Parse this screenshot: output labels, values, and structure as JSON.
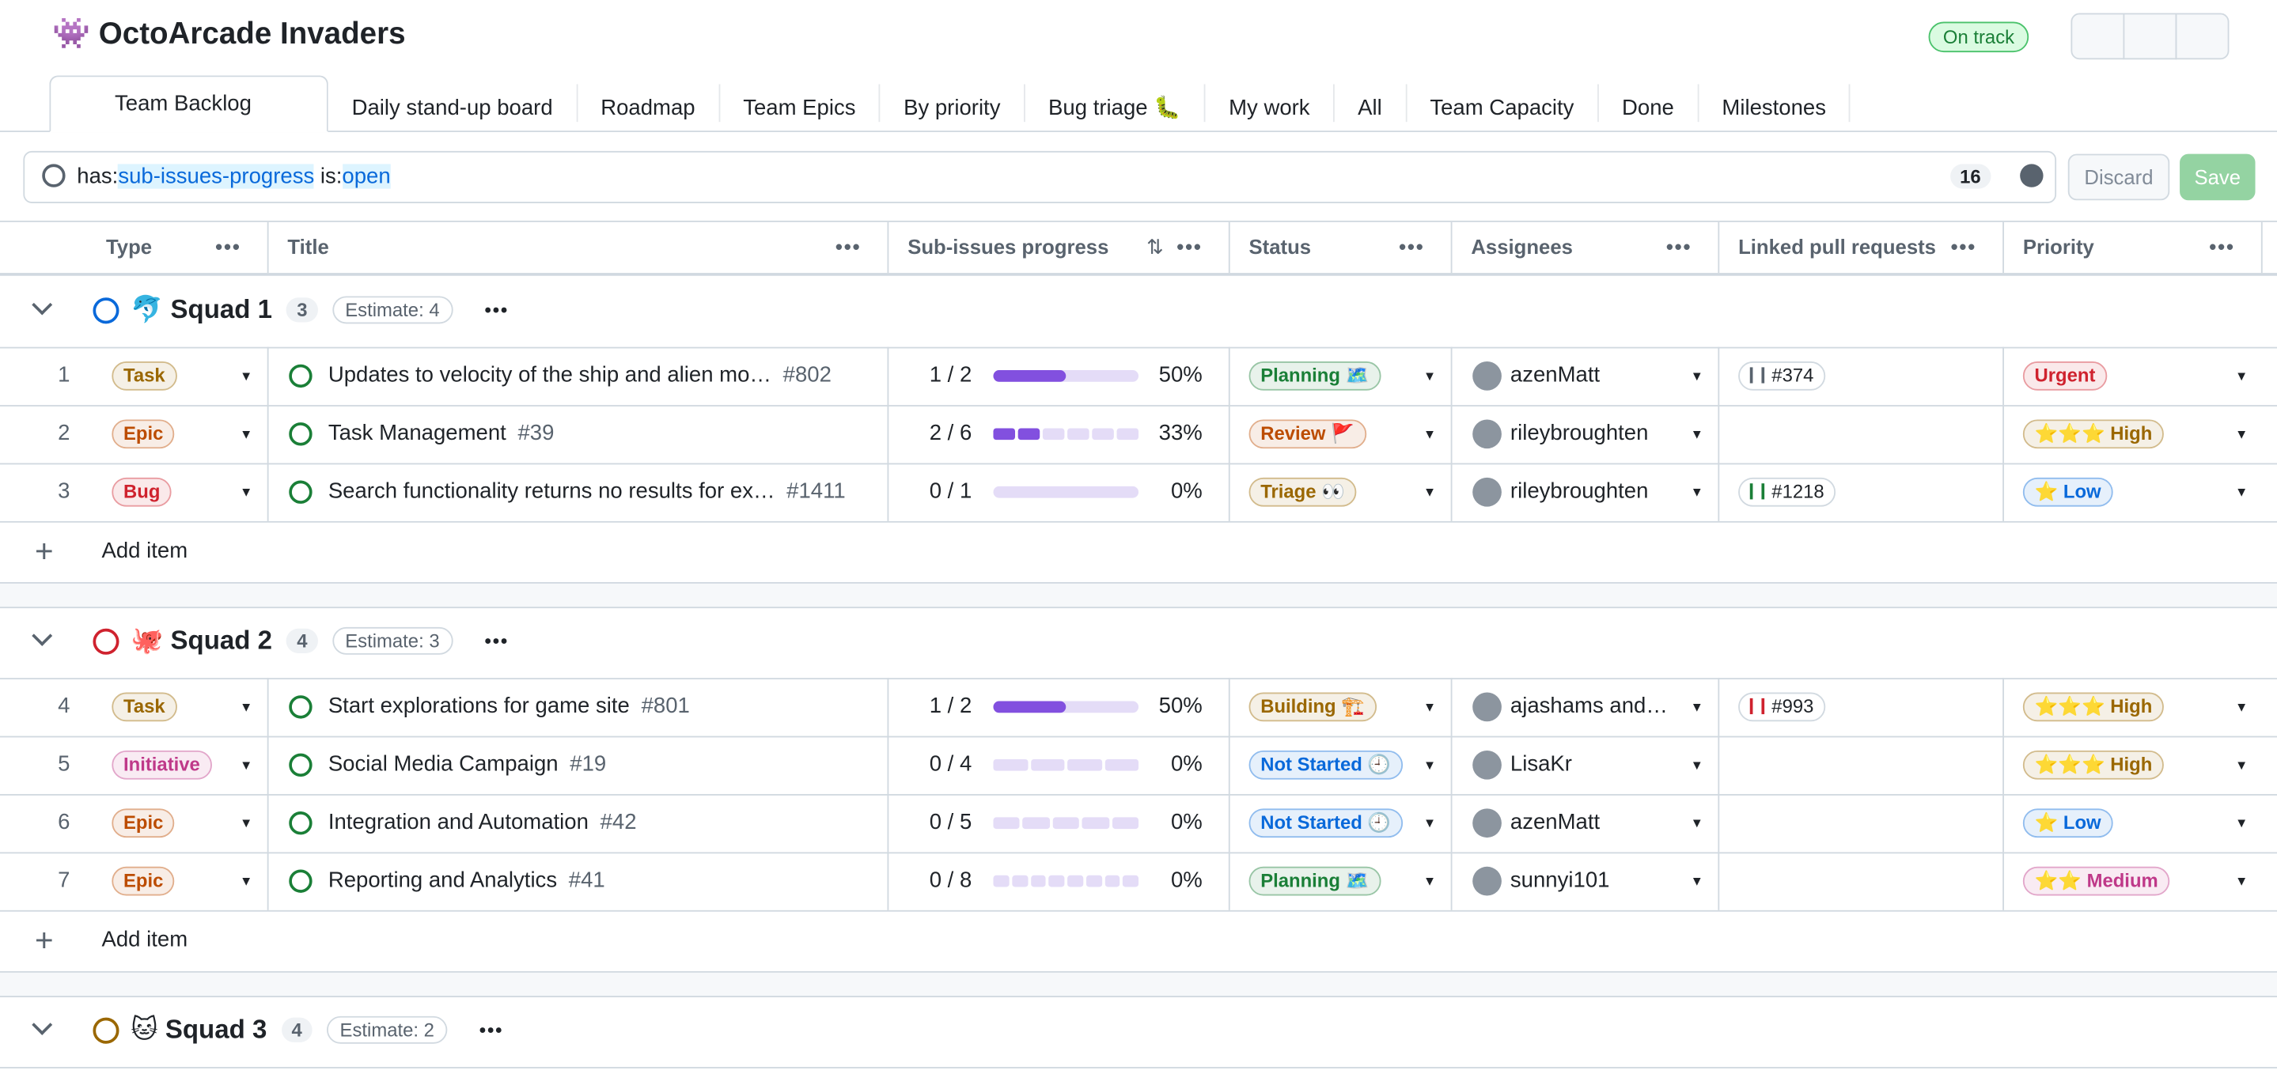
{
  "header": {
    "title": "👾 OctoArcade Invaders",
    "status": "On track"
  },
  "tabs": [
    "Team Backlog",
    "Daily stand-up board",
    "Roadmap",
    "Team Epics",
    "By priority",
    "Bug triage 🐛",
    "My work",
    "All",
    "Team Capacity",
    "Done",
    "Milestones"
  ],
  "filter": {
    "key1": "has:",
    "value1": "sub-issues-progress",
    "key2": "is:",
    "value2": "open",
    "count": 16
  },
  "buttons": {
    "discard": "Discard",
    "save": "Save"
  },
  "columns": [
    "Type",
    "Title",
    "Sub-issues progress",
    "Status",
    "Assignees",
    "Linked pull requests",
    "Priority"
  ],
  "sort_index": 2,
  "add_item": "Add item",
  "groups": [
    {
      "name": "🐬 Squad 1",
      "color": "#0969da",
      "count": 3,
      "estimate": "Estimate: 4",
      "rows": [
        {
          "number": 1,
          "type": "Task",
          "type_color": "#9a6700",
          "title": "Updates to velocity of the ship and alien mo…",
          "issue": "#802",
          "progress": "1 / 2",
          "percent": "50%",
          "status": "Planning 🗺️",
          "status_color": "#1a7f37",
          "assignee": "azenMatt",
          "pr": "#374",
          "pr_color": "#59636e",
          "priority": "Urgent",
          "priority_color": "#cf222e"
        },
        {
          "number": 2,
          "type": "Epic",
          "type_color": "#bc4c00",
          "title": "Task Management",
          "issue": "#39",
          "progress": "2 / 6",
          "percent": "33%",
          "status": "Review 🚩",
          "status_color": "#bc4c00",
          "assignee": "rileybroughten",
          "priority": "⭐⭐⭐ High",
          "priority_color": "#9a6700"
        },
        {
          "number": 3,
          "type": "Bug",
          "type_color": "#cf222e",
          "title": "Search functionality returns no results for ex…",
          "issue": "#1411",
          "progress": "0 / 1",
          "percent": "0%",
          "status": "Triage 👀",
          "status_color": "#9a6700",
          "assignee": "rileybroughten",
          "pr": "#1218",
          "pr_color": "#1a7f37",
          "priority": "⭐ Low",
          "priority_color": "#0969da"
        }
      ]
    },
    {
      "name": "🐙 Squad 2",
      "color": "#cf222e",
      "count": 4,
      "estimate": "Estimate: 3",
      "rows": [
        {
          "number": 4,
          "type": "Task",
          "type_color": "#9a6700",
          "title": "Start explorations for game site",
          "issue": "#801",
          "progress": "1 / 2",
          "percent": "50%",
          "status": "Building 🏗️",
          "status_color": "#9a6700",
          "assignee": "ajashams and…",
          "pr": "#993",
          "pr_color": "#cf222e",
          "priority": "⭐⭐⭐ High",
          "priority_color": "#9a6700"
        },
        {
          "number": 5,
          "type": "Initiative",
          "type_color": "#bf3989",
          "title": "Social Media Campaign",
          "issue": "#19",
          "progress": "0 / 4",
          "percent": "0%",
          "status": "Not Started 🕘",
          "status_color": "#0969da",
          "assignee": "LisaKr",
          "priority": "⭐⭐⭐ High",
          "priority_color": "#9a6700"
        },
        {
          "number": 6,
          "type": "Epic",
          "type_color": "#bc4c00",
          "title": "Integration and Automation",
          "issue": "#42",
          "progress": "0 / 5",
          "percent": "0%",
          "status": "Not Started 🕘",
          "status_color": "#0969da",
          "assignee": "azenMatt",
          "priority": "⭐ Low",
          "priority_color": "#0969da"
        },
        {
          "number": 7,
          "type": "Epic",
          "type_color": "#bc4c00",
          "title": "Reporting and Analytics",
          "issue": "#41",
          "progress": "0 / 8",
          "percent": "0%",
          "status": "Planning 🗺️",
          "status_color": "#1a7f37",
          "assignee": "sunnyi101",
          "priority": "⭐⭐ Medium",
          "priority_color": "#bf3989"
        }
      ]
    },
    {
      "name": "🐱 Squad 3",
      "color": "#9a6700",
      "count": 4,
      "estimate": "Estimate: 2",
      "rows": []
    }
  ]
}
